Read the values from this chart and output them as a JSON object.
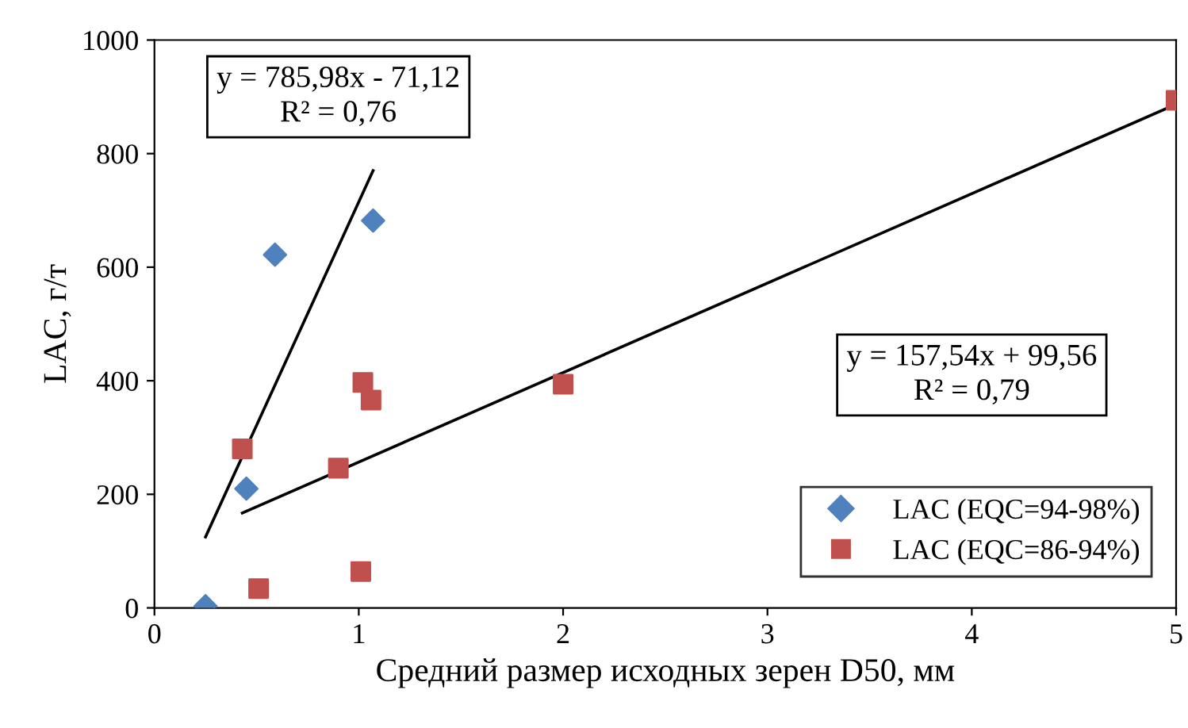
{
  "chart_data": {
    "type": "scatter",
    "xlabel": "Средний размер исходных зерен D50, мм",
    "ylabel": "LAC, г/т",
    "xlim": [
      0,
      5
    ],
    "ylim": [
      0,
      1000
    ],
    "xticks": [
      0,
      1,
      2,
      3,
      4,
      5
    ],
    "yticks": [
      0,
      200,
      400,
      600,
      800,
      1000
    ],
    "grid": false,
    "legend": "bottom right",
    "series": [
      {
        "name": "LAC (EQC=94-98%)",
        "color": "#4f81bd",
        "marker": "diamond",
        "x": [
          0.25,
          0.45,
          0.59,
          1.07
        ],
        "values": [
          3,
          210,
          622,
          682
        ]
      },
      {
        "name": "LAC (EQC=86-94%)",
        "color": "#c0504d",
        "marker": "square",
        "x": [
          0.43,
          0.51,
          0.9,
          1.02,
          1.06,
          1.01,
          2.0,
          5.0
        ],
        "values": [
          280,
          34,
          246,
          397,
          366,
          64,
          394,
          894
        ]
      },
      {
        "type": "line",
        "color": "#000000",
        "x": [
          0.25,
          1.07
        ],
        "values": [
          125,
          770
        ]
      },
      {
        "type": "line",
        "color": "#000000",
        "x": [
          0.43,
          5.0
        ],
        "values": [
          167,
          887
        ]
      }
    ],
    "annotations": [
      "y = 785,98x - 71,12\nR² = 0,76",
      "y = 157,54x + 99,56\nR² = 0,79"
    ]
  }
}
